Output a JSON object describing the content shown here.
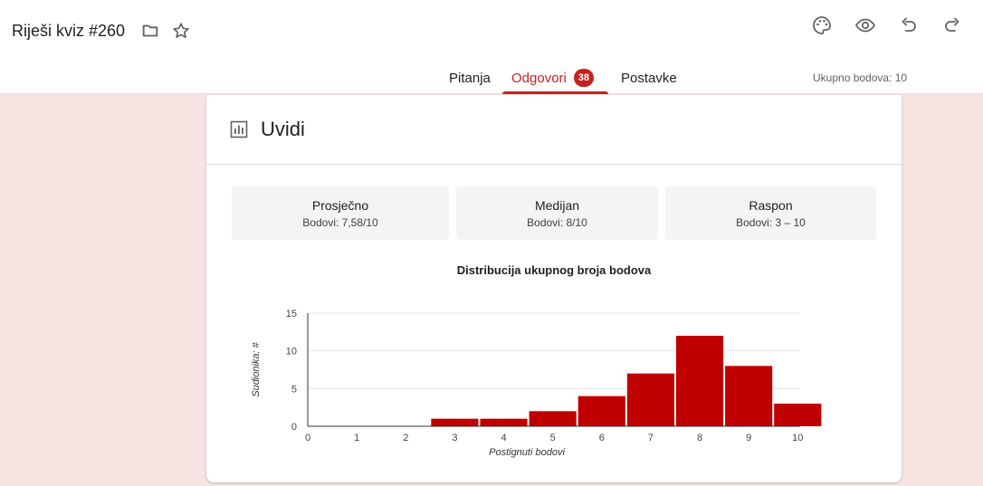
{
  "header": {
    "title": "Riješi kviz #260",
    "tabs": [
      {
        "label": "Pitanja"
      },
      {
        "label": "Odgovori",
        "badge": "38",
        "active": true
      },
      {
        "label": "Postavke"
      }
    ],
    "total_points": "Ukupno bodova: 10",
    "icons": [
      "folder-icon",
      "star-icon",
      "palette-icon",
      "eye-icon",
      "undo-icon",
      "redo-icon"
    ],
    "accent_color": "#c5221f"
  },
  "insights": {
    "title": "Uvidi",
    "stats": [
      {
        "label": "Prosječno",
        "value": "Bodovi: 7,58/10"
      },
      {
        "label": "Medijan",
        "value": "Bodovi: 8/10"
      },
      {
        "label": "Raspon",
        "value": "Bodovi: 3 – 10"
      }
    ]
  },
  "chart_data": {
    "type": "bar",
    "title": "Distribucija ukupnog broja bodova",
    "xlabel": "Postignuti bodovi",
    "ylabel": "Sudionika: #",
    "categories": [
      "0",
      "1",
      "2",
      "3",
      "4",
      "5",
      "6",
      "7",
      "8",
      "9",
      "10"
    ],
    "values": [
      0,
      0,
      0,
      1,
      1,
      2,
      4,
      7,
      12,
      8,
      3
    ],
    "ylim": [
      0,
      15
    ],
    "yticks": [
      0,
      5,
      10,
      15
    ],
    "color": "#c00000",
    "grid": true
  }
}
